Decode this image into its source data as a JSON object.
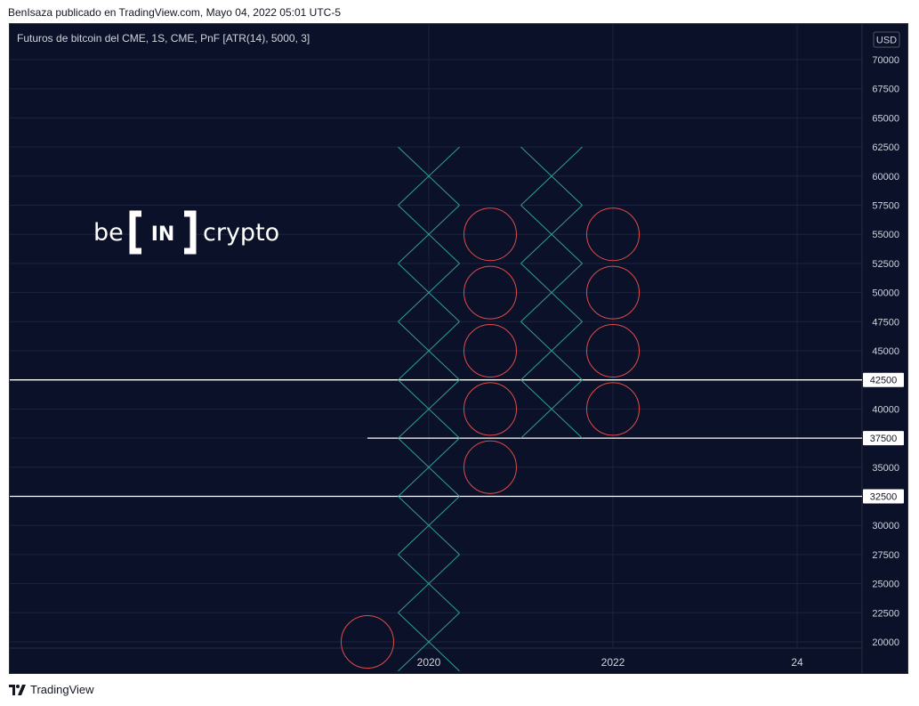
{
  "header": {
    "text": "BenIsaza publicado en TradingView.com, Mayo 04, 2022 05:01 UTC-5"
  },
  "chart_title": "Futuros de bitcoin del CME, 1S, CME, PnF [ATR(14), 5000, 3]",
  "logo": {
    "left": "be",
    "middle": "IN",
    "right": "crypto"
  },
  "footer": {
    "brand": "TradingView"
  },
  "colors": {
    "background": "#0b1129",
    "grid": "#1c2440",
    "x_mark": "#2f9e96",
    "o_mark": "#e04b4b",
    "level_line": "#ffffff",
    "axis_text": "#d1d4dc"
  },
  "chart_data": {
    "type": "point-and-figure",
    "box_size": 5000,
    "reversal": 3,
    "currency": "USD",
    "ylim": [
      20000,
      72500
    ],
    "y_ticks": [
      20000,
      22500,
      25000,
      27500,
      30000,
      32500,
      35000,
      37500,
      40000,
      42500,
      45000,
      47500,
      50000,
      52500,
      55000,
      57500,
      60000,
      62500,
      65000,
      67500,
      70000
    ],
    "x_ticks": [
      "2020",
      "2022",
      "24"
    ],
    "columns": [
      {
        "index": 0,
        "type": "O",
        "levels": [
          20000
        ]
      },
      {
        "index": 1,
        "type": "X",
        "levels": [
          20000,
          25000,
          30000,
          35000,
          40000,
          45000,
          50000,
          55000,
          60000
        ]
      },
      {
        "index": 2,
        "type": "O",
        "levels": [
          35000,
          40000,
          45000,
          50000,
          55000
        ]
      },
      {
        "index": 3,
        "type": "X",
        "levels": [
          40000,
          45000,
          50000,
          55000,
          60000
        ]
      },
      {
        "index": 4,
        "type": "O",
        "levels": [
          40000,
          45000,
          50000,
          55000
        ]
      }
    ],
    "price_levels": [
      {
        "value": 42500,
        "label": "42500"
      },
      {
        "value": 37500,
        "label": "37500"
      },
      {
        "value": 32500,
        "label": "32500"
      }
    ]
  }
}
